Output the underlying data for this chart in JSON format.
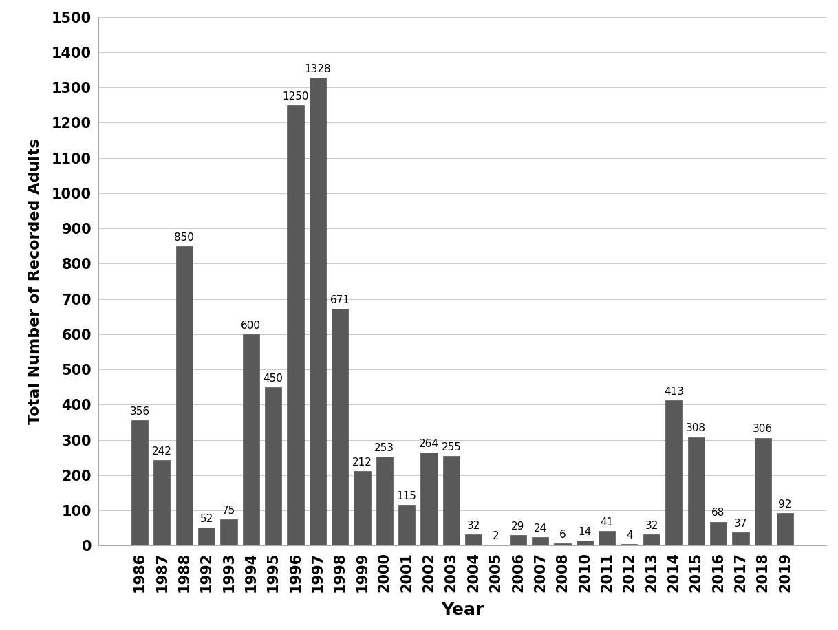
{
  "years": [
    "1986",
    "1987",
    "1988",
    "1992",
    "1993",
    "1994",
    "1995",
    "1996",
    "1997",
    "1998",
    "1999",
    "2000",
    "2001",
    "2002",
    "2003",
    "2004",
    "2005",
    "2006",
    "2007",
    "2008",
    "2010",
    "2011",
    "2012",
    "2013",
    "2014",
    "2015",
    "2016",
    "2017",
    "2018",
    "2019"
  ],
  "values": [
    356,
    242,
    850,
    52,
    75,
    600,
    450,
    1250,
    1328,
    671,
    212,
    253,
    115,
    264,
    255,
    32,
    2,
    29,
    24,
    6,
    14,
    41,
    4,
    32,
    413,
    308,
    68,
    37,
    306,
    92
  ],
  "bar_color": "#595959",
  "xlabel": "Year",
  "ylabel": "Total Number of Recorded Adults",
  "ylim": [
    0,
    1500
  ],
  "yticks": [
    0,
    100,
    200,
    300,
    400,
    500,
    600,
    700,
    800,
    900,
    1000,
    1100,
    1200,
    1300,
    1400,
    1500
  ],
  "background_color": "#ffffff",
  "bar_edge_color": "#595959",
  "xlabel_fontsize": 18,
  "ylabel_fontsize": 16,
  "tick_fontsize": 15,
  "annotation_fontsize": 11,
  "bar_width": 0.75
}
